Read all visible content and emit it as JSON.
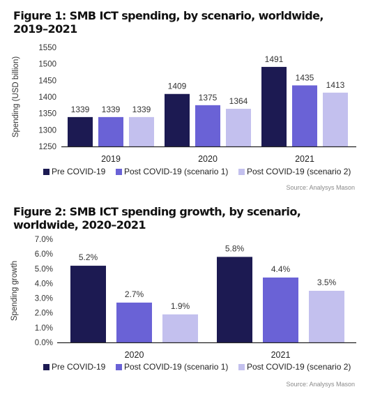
{
  "figures": [
    {
      "title": "Figure 1: SMB ICT spending, by scenario, worldwide, 2019–2021",
      "source": "Source: Analysys Mason"
    },
    {
      "title": "Figure 2: SMB ICT spending growth, by scenario, worldwide, 2020–2021",
      "source": "Source: Analysys Mason"
    }
  ],
  "colors": {
    "pre": "#1c1a52",
    "post1": "#6a62d6",
    "post2": "#c3c0ee"
  },
  "chart_data": [
    {
      "type": "bar",
      "title": "Figure 1: SMB ICT spending, by scenario, worldwide, 2019–2021",
      "xlabel": "",
      "ylabel": "Spending (USD billion)",
      "categories": [
        "2019",
        "2020",
        "2021"
      ],
      "ylim": [
        1250,
        1550
      ],
      "yticks": [
        "1250",
        "1300",
        "1350",
        "1400",
        "1450",
        "1500",
        "1550"
      ],
      "ytick_values": [
        1250,
        1300,
        1350,
        1400,
        1450,
        1500,
        1550
      ],
      "series": [
        {
          "name": "Pre COVID-19",
          "values": [
            1339,
            1409,
            1491
          ],
          "labels": [
            "1339",
            "1409",
            "1491"
          ]
        },
        {
          "name": "Post COVID-19 (scenario 1)",
          "values": [
            1339,
            1375,
            1435
          ],
          "labels": [
            "1339",
            "1375",
            "1435"
          ]
        },
        {
          "name": "Post COVID-19 (scenario 2)",
          "values": [
            1339,
            1364,
            1413
          ],
          "labels": [
            "1339",
            "1364",
            "1413"
          ]
        }
      ],
      "legend": "bottom",
      "grid": false
    },
    {
      "type": "bar",
      "title": "Figure 2: SMB ICT spending growth, by scenario, worldwide, 2020–2021",
      "xlabel": "",
      "ylabel": "Spending growth",
      "categories": [
        "2020",
        "2021"
      ],
      "ylim": [
        0,
        7
      ],
      "yticks": [
        "0.0%",
        "1.0%",
        "2.0%",
        "3.0%",
        "4.0%",
        "5.0%",
        "6.0%",
        "7.0%"
      ],
      "ytick_values": [
        0,
        1,
        2,
        3,
        4,
        5,
        6,
        7
      ],
      "series": [
        {
          "name": "Pre COVID-19",
          "values": [
            5.2,
            5.8
          ],
          "labels": [
            "5.2%",
            "5.8%"
          ]
        },
        {
          "name": "Post COVID-19 (scenario 1)",
          "values": [
            2.7,
            4.4
          ],
          "labels": [
            "2.7%",
            "4.4%"
          ]
        },
        {
          "name": "Post COVID-19 (scenario 2)",
          "values": [
            1.9,
            3.5
          ],
          "labels": [
            "1.9%",
            "3.5%"
          ]
        }
      ],
      "legend": "bottom",
      "grid": false
    }
  ]
}
